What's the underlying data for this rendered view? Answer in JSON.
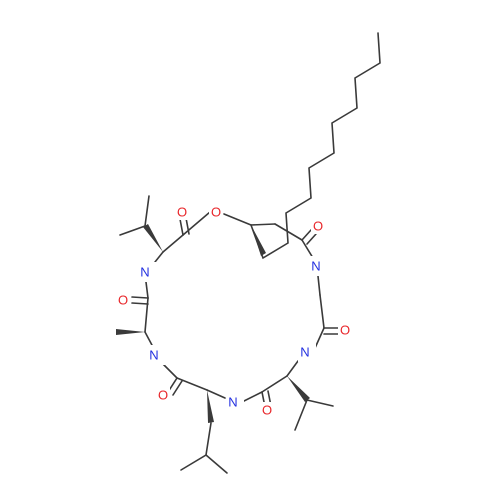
{
  "atoms": {
    "O": {
      "label": "O",
      "color": "#e8262a"
    },
    "N": {
      "label": "N",
      "color": "#2330e0"
    }
  },
  "colors": {
    "bond": "#3a3a3a",
    "background": "#ffffff"
  }
}
